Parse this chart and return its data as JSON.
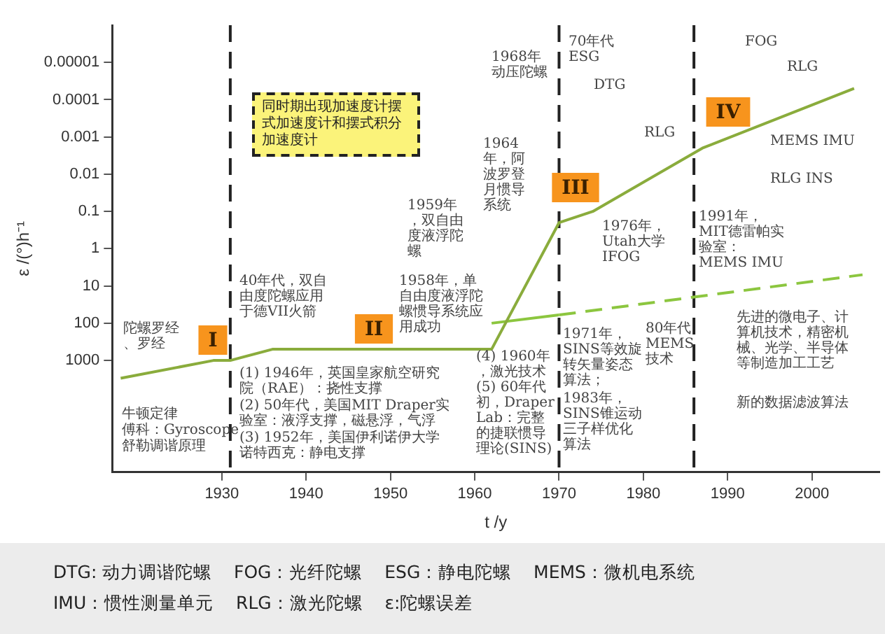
{
  "chart_data": {
    "type": "line",
    "xlabel": "t /y",
    "ylabel": "ε /(°)h⁻¹",
    "log": "y",
    "xlim": [
      1917,
      2008
    ],
    "xticks": [
      1930,
      1940,
      1950,
      1960,
      1970,
      1980,
      1990,
      2000
    ],
    "ylim": [
      1000000,
      1e-06
    ],
    "yticks": [
      {
        "value": 1e-05,
        "label": "0.00001"
      },
      0.0001,
      0.001,
      0.01,
      0.1,
      1,
      10,
      100,
      1000
    ],
    "grid": false,
    "legend": false,
    "marker": "none",
    "series": [
      {
        "color": "#8aac3c",
        "line_style": "solid",
        "x": [
          1918,
          1929,
          1931,
          1936,
          1962,
          1970,
          1974,
          1987,
          2005
        ],
        "values": [
          3000,
          1000,
          1000,
          500,
          500,
          0.2,
          0.1,
          0.002,
          5e-05
        ]
      },
      {
        "color": "#8cc63f",
        "line_style": "solid",
        "x": [
          1962,
          1970
        ],
        "values": [
          100,
          60
        ]
      },
      {
        "color": "#8cc63f",
        "line_style": "dashed",
        "x": [
          1970,
          2006
        ],
        "values": [
          60,
          5
        ]
      }
    ],
    "ref_lines": [
      {
        "axis": "x",
        "value": 1931,
        "color": "#222222",
        "line_style": "dashed"
      },
      {
        "axis": "x",
        "value": 1970,
        "color": "#222222",
        "line_style": "dashed"
      },
      {
        "axis": "x",
        "value": 1986,
        "color": "#222222",
        "line_style": "dashed"
      }
    ],
    "annotations": [
      "I",
      "II",
      "III",
      "IV",
      "牛顿定律",
      "傅科：Gyroscope",
      "舒勒调谐原理",
      "陀螺罗经、罗经",
      "40年代，双自由度陀螺应用于德VII火箭",
      "(1) 1946年，英国皇家航空研究院（RAE）：挠性支撑",
      "(2) 50年代，美国MIT Draper实验室：液浮支撑，磁悬浮，气浮",
      "(3) 1952年，美国伊利诺伊大学诺特西克：静电支撑",
      "1958年，单自由度液浮陀螺惯导系统应用成功",
      "1959年，双自由度液浮陀螺",
      "1964年，阿波罗登月惯导系统",
      "1968年动压陀螺",
      "70年代ESG",
      "DTG",
      "RLG",
      "1976年，Utah大学IFOG",
      "1991年，MIT德雷帕实验室：MEMS IMU",
      "FOG",
      "RLG",
      "MEMS IMU",
      "RLG INS",
      "80年代MEMS技术",
      "1971年，SINS等效旋转矢量姿态算法；",
      "1983年，SINS锥运动三子样优化算法",
      "(4) 1960年，激光技术",
      "(5) 60年代初，Draper Lab：完整的捷联惯导理论(SINS)",
      "先进的微电子、计算机技术，精密机械、光学、半导体等制造加工工艺",
      "新的数据滤波算法",
      "同时期出现加速度计摆式加速度计和摆式积分加速度计",
      "DTG: 动力调谐陀螺    FOG：光纤陀螺    ESG：静电陀螺    MEMS：微机电系统",
      "IMU：惯性测量单元    RLG：激光陀螺    ε:陀螺误差"
    ]
  }
}
